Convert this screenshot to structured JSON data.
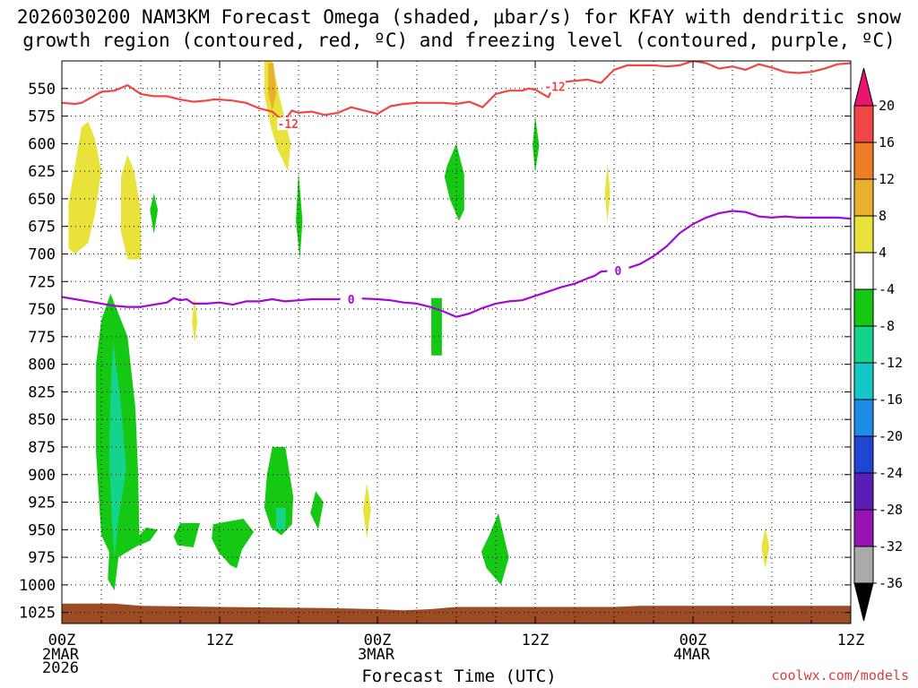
{
  "title": {
    "line1": "2026030200 NAM3KM Forecast Omega (shaded, μbar/s) for KFAY with dendritic snow",
    "line2": "growth region (contoured, red, ºC) and freezing level (contoured, purple, ºC)"
  },
  "xlabel": "Forecast Time (UTC)",
  "credit": "coolwx.com/models",
  "chart_data": {
    "type": "heatmap",
    "x_unit": "forecast hour from 2026-03-02 00Z",
    "xlim": [
      0,
      60
    ],
    "ylim_hpa": [
      1035,
      525
    ],
    "y_ticks": [
      550,
      575,
      600,
      625,
      650,
      675,
      700,
      725,
      750,
      775,
      800,
      825,
      850,
      875,
      900,
      925,
      950,
      975,
      1000,
      1025
    ],
    "x_ticks": [
      {
        "hour": 0,
        "label": "00Z",
        "sub": [
          "2MAR",
          "2026"
        ]
      },
      {
        "hour": 12,
        "label": "12Z",
        "sub": []
      },
      {
        "hour": 24,
        "label": "00Z",
        "sub": [
          "3MAR"
        ]
      },
      {
        "hour": 36,
        "label": "12Z",
        "sub": []
      },
      {
        "hour": 48,
        "label": "00Z",
        "sub": [
          "4MAR"
        ]
      },
      {
        "hour": 60,
        "label": "12Z",
        "sub": []
      }
    ],
    "grid": true,
    "colorbar": {
      "labels": [
        "20",
        "16",
        "12",
        "8",
        "4",
        "-4",
        "-8",
        "-12",
        "-16",
        "-20",
        "-24",
        "-28",
        "-32",
        "-36"
      ],
      "colors": [
        "#e8146e",
        "#f04646",
        "#ee7d26",
        "#e8b02c",
        "#e8e23a",
        "#ffffff",
        "#14c814",
        "#14d48c",
        "#14c8c8",
        "#1e8ce6",
        "#1e46d2",
        "#5a1eb4",
        "#9614b4",
        "#aaaaaa",
        "#000000"
      ]
    },
    "contours": [
      {
        "name": "-12",
        "color": "#f04646",
        "points": [
          [
            0,
            563
          ],
          [
            1,
            564
          ],
          [
            1.5,
            563
          ],
          [
            3,
            553
          ],
          [
            4,
            552
          ],
          [
            5,
            547
          ],
          [
            6,
            555
          ],
          [
            7,
            557
          ],
          [
            8,
            557
          ],
          [
            9,
            560
          ],
          [
            10,
            562
          ],
          [
            11,
            561
          ],
          [
            11.5,
            560
          ],
          [
            12,
            560
          ],
          [
            13,
            561
          ],
          [
            14,
            563
          ],
          [
            15,
            568
          ],
          [
            16,
            571
          ],
          [
            16.5,
            576
          ],
          [
            17,
            578
          ],
          [
            17.5,
            570
          ],
          [
            18,
            572
          ],
          [
            19,
            571
          ],
          [
            20,
            574
          ],
          [
            21,
            572
          ],
          [
            22,
            567
          ],
          [
            23,
            570
          ],
          [
            24,
            573
          ],
          [
            25,
            566
          ],
          [
            26,
            564
          ],
          [
            27,
            563
          ],
          [
            28,
            563
          ],
          [
            29,
            563
          ],
          [
            30,
            564
          ],
          [
            31,
            562
          ],
          [
            32,
            567
          ],
          [
            33,
            555
          ],
          [
            34,
            552
          ],
          [
            35,
            552
          ],
          [
            35.5,
            550
          ],
          [
            36,
            551
          ],
          [
            37,
            558
          ],
          [
            37.5,
            545
          ],
          [
            39,
            543
          ],
          [
            40,
            542
          ],
          [
            41,
            545
          ],
          [
            42,
            533
          ],
          [
            43,
            529
          ],
          [
            44,
            529
          ],
          [
            45,
            529
          ],
          [
            46,
            530
          ],
          [
            47,
            529
          ],
          [
            48,
            525
          ],
          [
            49,
            527
          ],
          [
            50,
            532
          ],
          [
            51,
            530
          ],
          [
            52,
            533
          ],
          [
            53,
            528
          ],
          [
            54,
            531
          ],
          [
            55,
            535
          ],
          [
            56,
            536
          ],
          [
            57,
            535
          ],
          [
            58,
            532
          ],
          [
            59,
            528
          ],
          [
            60,
            527
          ]
        ]
      },
      {
        "name": "0",
        "color": "#a00ad2",
        "points": [
          [
            0,
            739
          ],
          [
            1,
            741
          ],
          [
            2,
            743
          ],
          [
            3,
            745
          ],
          [
            4,
            747
          ],
          [
            5,
            748
          ],
          [
            6,
            748
          ],
          [
            7,
            746
          ],
          [
            8,
            744
          ],
          [
            8.5,
            740
          ],
          [
            9,
            742
          ],
          [
            9.5,
            741
          ],
          [
            10,
            745
          ],
          [
            11,
            745
          ],
          [
            12,
            744
          ],
          [
            13,
            746
          ],
          [
            14,
            743
          ],
          [
            15,
            743
          ],
          [
            16,
            741
          ],
          [
            17,
            743
          ],
          [
            18,
            742
          ],
          [
            19,
            741
          ],
          [
            20,
            741
          ],
          [
            21,
            741
          ],
          [
            22,
            740
          ],
          [
            24,
            741
          ],
          [
            25,
            742
          ],
          [
            26,
            744
          ],
          [
            27,
            745
          ],
          [
            28,
            748
          ],
          [
            29,
            752
          ],
          [
            30,
            757
          ],
          [
            31,
            754
          ],
          [
            32,
            749
          ],
          [
            33,
            745
          ],
          [
            34,
            743
          ],
          [
            35,
            742
          ],
          [
            36,
            738
          ],
          [
            37,
            734
          ],
          [
            38,
            730
          ],
          [
            39,
            727
          ],
          [
            40,
            722
          ],
          [
            40.5,
            720
          ],
          [
            41,
            716
          ],
          [
            42,
            715
          ],
          [
            43,
            713
          ],
          [
            44,
            709
          ],
          [
            45,
            702
          ],
          [
            46,
            693
          ],
          [
            47,
            681
          ],
          [
            48,
            673
          ],
          [
            49,
            667
          ],
          [
            50,
            663
          ],
          [
            51,
            661
          ],
          [
            52,
            662
          ],
          [
            53,
            666
          ],
          [
            54,
            667
          ],
          [
            55,
            666
          ],
          [
            56,
            667
          ],
          [
            57,
            667
          ],
          [
            58,
            667
          ],
          [
            59,
            667
          ],
          [
            60,
            668
          ]
        ]
      }
    ],
    "omega_regions": [
      {
        "color": "#e8e23a",
        "points": [
          [
            0.5,
            655
          ],
          [
            1.5,
            585
          ],
          [
            2,
            580
          ],
          [
            2.5,
            595
          ],
          [
            3,
            625
          ],
          [
            2.5,
            665
          ],
          [
            2,
            690
          ],
          [
            1,
            700
          ],
          [
            0.5,
            695
          ]
        ]
      },
      {
        "color": "#e8e23a",
        "points": [
          [
            4.5,
            630
          ],
          [
            5,
            610
          ],
          [
            5.5,
            625
          ],
          [
            6,
            660
          ],
          [
            6,
            705
          ],
          [
            5,
            705
          ],
          [
            4.5,
            680
          ]
        ]
      },
      {
        "color": "#e8e23a",
        "points": [
          [
            15.4,
            525
          ],
          [
            16,
            525
          ],
          [
            16.6,
            560
          ],
          [
            17.4,
            600
          ],
          [
            17.2,
            625
          ],
          [
            16.4,
            605
          ],
          [
            15.9,
            585
          ],
          [
            15.4,
            555
          ]
        ]
      },
      {
        "color": "#e8b02c",
        "points": [
          [
            15.7,
            527
          ],
          [
            16.1,
            527
          ],
          [
            16.3,
            555
          ],
          [
            16,
            570
          ],
          [
            15.7,
            555
          ]
        ]
      },
      {
        "color": "#e8e23a",
        "points": [
          [
            10.1,
            738
          ],
          [
            10.3,
            762
          ],
          [
            10.1,
            780
          ],
          [
            9.9,
            762
          ]
        ]
      },
      {
        "color": "#e8e23a",
        "points": [
          [
            23.2,
            908
          ],
          [
            23.5,
            932
          ],
          [
            23.2,
            958
          ],
          [
            22.9,
            932
          ]
        ]
      },
      {
        "color": "#e8e23a",
        "points": [
          [
            41.5,
            618
          ],
          [
            41.7,
            645
          ],
          [
            41.5,
            672
          ],
          [
            41.3,
            645
          ]
        ]
      },
      {
        "color": "#e8e23a",
        "points": [
          [
            53.5,
            948
          ],
          [
            53.8,
            966
          ],
          [
            53.5,
            985
          ],
          [
            53.2,
            966
          ]
        ]
      },
      {
        "color": "#14c814",
        "points": [
          [
            7,
            645
          ],
          [
            7.3,
            660
          ],
          [
            7,
            682
          ],
          [
            6.7,
            660
          ]
        ]
      },
      {
        "color": "#14c814",
        "points": [
          [
            18,
            625
          ],
          [
            18.3,
            670
          ],
          [
            18.1,
            705
          ],
          [
            17.8,
            670
          ]
        ]
      },
      {
        "color": "#14c814",
        "points": [
          [
            36,
            575
          ],
          [
            36.3,
            602
          ],
          [
            36,
            626
          ],
          [
            35.8,
            602
          ]
        ]
      },
      {
        "color": "#14c814",
        "points": [
          [
            29.3,
            620
          ],
          [
            30,
            600
          ],
          [
            30.6,
            628
          ],
          [
            30.6,
            660
          ],
          [
            30.2,
            670
          ],
          [
            29.5,
            650
          ],
          [
            29.1,
            630
          ]
        ]
      },
      {
        "color": "#14c814",
        "points": [
          [
            28.1,
            740
          ],
          [
            28.9,
            740
          ],
          [
            28.9,
            792
          ],
          [
            28.1,
            792
          ]
        ]
      },
      {
        "color": "#14c814",
        "points": [
          [
            3.7,
            736
          ],
          [
            5.0,
            775
          ],
          [
            5.6,
            840
          ],
          [
            5.8,
            900
          ],
          [
            5.9,
            955
          ],
          [
            6.4,
            948
          ],
          [
            7.3,
            950
          ],
          [
            6.7,
            960
          ],
          [
            5.7,
            965
          ],
          [
            4.3,
            975
          ],
          [
            4.0,
            1005
          ],
          [
            3.5,
            995
          ],
          [
            3.6,
            970
          ],
          [
            3.0,
            955
          ],
          [
            2.6,
            880
          ],
          [
            2.6,
            800
          ],
          [
            3.0,
            760
          ]
        ]
      },
      {
        "color": "#14d48c",
        "points": [
          [
            3.9,
            780
          ],
          [
            4.4,
            825
          ],
          [
            4.9,
            895
          ],
          [
            4.3,
            940
          ],
          [
            4.0,
            975
          ],
          [
            3.8,
            940
          ],
          [
            3.6,
            885
          ],
          [
            3.7,
            825
          ]
        ]
      },
      {
        "color": "#14c814",
        "points": [
          [
            9,
            944
          ],
          [
            10.5,
            944
          ],
          [
            10,
            966
          ],
          [
            8.8,
            964
          ],
          [
            8.5,
            956
          ]
        ]
      },
      {
        "color": "#14c814",
        "points": [
          [
            11.5,
            945
          ],
          [
            13.8,
            940
          ],
          [
            14.6,
            952
          ],
          [
            13.7,
            968
          ],
          [
            13.3,
            985
          ],
          [
            12.8,
            982
          ],
          [
            11.9,
            970
          ],
          [
            11.4,
            958
          ]
        ]
      },
      {
        "color": "#14c814",
        "points": [
          [
            16.0,
            875
          ],
          [
            17.0,
            875
          ],
          [
            17.6,
            920
          ],
          [
            17.5,
            945
          ],
          [
            16.7,
            955
          ],
          [
            15.9,
            948
          ],
          [
            15.4,
            930
          ],
          [
            15.6,
            900
          ]
        ]
      },
      {
        "color": "#14d48c",
        "points": [
          [
            16.3,
            930
          ],
          [
            17.0,
            930
          ],
          [
            17.0,
            950
          ],
          [
            16.3,
            950
          ]
        ]
      },
      {
        "color": "#14c814",
        "points": [
          [
            19.3,
            915
          ],
          [
            19.9,
            925
          ],
          [
            19.5,
            950
          ],
          [
            18.9,
            935
          ]
        ]
      },
      {
        "color": "#14c814",
        "points": [
          [
            32.5,
            955
          ],
          [
            33.2,
            935
          ],
          [
            34.0,
            975
          ],
          [
            33.4,
            1000
          ],
          [
            32.3,
            985
          ],
          [
            31.9,
            970
          ]
        ]
      }
    ]
  }
}
